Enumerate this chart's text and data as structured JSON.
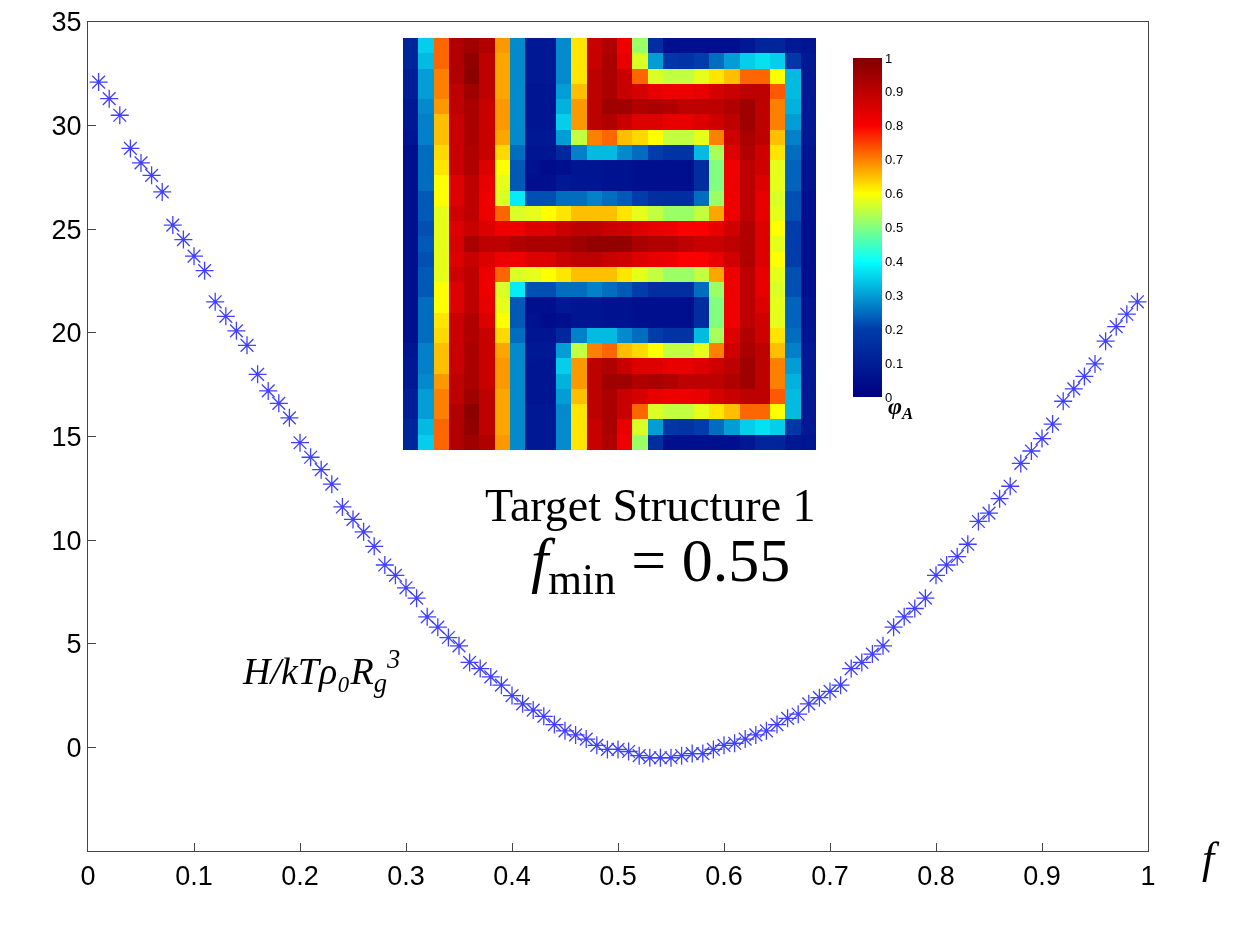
{
  "chart_data": [
    {
      "type": "scatter",
      "xlabel": "f",
      "ylabel": "H/kTρ₀R$_{g}$$^{3}$",
      "annotations": [
        "Target Structure 1",
        "f$_{min}$ = 0.55"
      ],
      "x": [
        0.01,
        0.02,
        0.03,
        0.04,
        0.05,
        0.06,
        0.07,
        0.08,
        0.09,
        0.1,
        0.11,
        0.12,
        0.13,
        0.14,
        0.15,
        0.16,
        0.17,
        0.18,
        0.19,
        0.2,
        0.21,
        0.22,
        0.23,
        0.24,
        0.25,
        0.26,
        0.27,
        0.28,
        0.29,
        0.3,
        0.31,
        0.32,
        0.33,
        0.34,
        0.35,
        0.36,
        0.37,
        0.38,
        0.39,
        0.4,
        0.41,
        0.42,
        0.43,
        0.44,
        0.45,
        0.46,
        0.47,
        0.48,
        0.49,
        0.5,
        0.51,
        0.52,
        0.53,
        0.54,
        0.55,
        0.56,
        0.57,
        0.58,
        0.59,
        0.6,
        0.61,
        0.62,
        0.63,
        0.64,
        0.65,
        0.66,
        0.67,
        0.68,
        0.69,
        0.7,
        0.71,
        0.72,
        0.73,
        0.74,
        0.75,
        0.76,
        0.77,
        0.78,
        0.79,
        0.8,
        0.81,
        0.82,
        0.83,
        0.84,
        0.85,
        0.86,
        0.87,
        0.88,
        0.89,
        0.9,
        0.91,
        0.92,
        0.93,
        0.94,
        0.95,
        0.96,
        0.97,
        0.98,
        0.99
      ],
      "series": [
        {
          "color": "#4040ff",
          "values": [
            32.1,
            31.3,
            30.5,
            28.9,
            28.2,
            27.6,
            26.8,
            25.2,
            24.5,
            23.7,
            23.0,
            21.5,
            20.8,
            20.1,
            19.4,
            18.0,
            17.2,
            16.6,
            15.9,
            14.7,
            14.0,
            13.4,
            12.7,
            11.6,
            11.0,
            10.4,
            9.7,
            8.8,
            8.3,
            7.7,
            7.2,
            6.3,
            5.8,
            5.3,
            4.9,
            4.1,
            3.8,
            3.4,
            3.0,
            2.5,
            2.1,
            1.8,
            1.5,
            1.1,
            0.8,
            0.6,
            0.4,
            0.1,
            -0.1,
            -0.1,
            -0.2,
            -0.4,
            -0.5,
            -0.5,
            -0.5,
            -0.4,
            -0.3,
            -0.3,
            -0.1,
            0.1,
            0.2,
            0.4,
            0.6,
            0.8,
            1.1,
            1.4,
            1.6,
            2.1,
            2.4,
            2.7,
            3.0,
            3.8,
            4.1,
            4.5,
            4.9,
            5.8,
            6.3,
            6.7,
            7.2,
            8.3,
            8.8,
            9.2,
            9.8,
            10.9,
            11.3,
            12.0,
            12.6,
            13.7,
            14.3,
            14.9,
            15.6,
            16.7,
            17.3,
            17.9,
            18.5,
            19.6,
            20.3,
            20.9,
            21.5
          ]
        }
      ],
      "marker": "cross",
      "xlim": [
        0,
        1
      ],
      "xticks": [
        0,
        0.1,
        0.2,
        0.3,
        0.4,
        0.5,
        0.6,
        0.7,
        0.8,
        0.9,
        1
      ],
      "ylim": [
        -5,
        35
      ],
      "yticks": [
        {
          "value": -5,
          "label": null
        },
        0,
        5,
        10,
        15,
        20,
        25,
        30,
        35
      ]
    },
    {
      "type": "heatmap",
      "clabel": "φ$_{A}$",
      "clim": [
        0,
        1
      ],
      "cticks": [
        0,
        0.1,
        0.2,
        0.3,
        0.4,
        0.5,
        0.6,
        0.7,
        0.8,
        0.9,
        1
      ],
      "categories": [
        null,
        null,
        null,
        null,
        null,
        null,
        null,
        null,
        null,
        null,
        null,
        null,
        null,
        null,
        null,
        null,
        null,
        null,
        null,
        null,
        null,
        null,
        null,
        null,
        null,
        null,
        null
      ],
      "y_categories": [
        null,
        null,
        null,
        null,
        null,
        null,
        null,
        null,
        null,
        null,
        null,
        null,
        null,
        null,
        null,
        null,
        null,
        null,
        null,
        null,
        null,
        null,
        null,
        null,
        null,
        null,
        null
      ],
      "cells": [
        [
          0.12,
          0.35,
          0.72,
          0.92,
          0.95,
          0.92,
          0.68,
          0.28,
          0.08,
          0.08,
          0.28,
          0.62,
          0.88,
          0.92,
          0.82,
          0.52,
          0.15,
          0.05,
          0.05,
          0.05,
          0.05,
          0.05,
          0.08,
          0.12,
          0.12,
          0.08,
          0.07
        ],
        [
          0.12,
          0.33,
          0.72,
          0.92,
          0.97,
          0.9,
          0.67,
          0.28,
          0.08,
          0.08,
          0.28,
          0.62,
          0.88,
          0.93,
          0.83,
          0.57,
          0.3,
          0.18,
          0.17,
          0.2,
          0.25,
          0.3,
          0.35,
          0.37,
          0.35,
          0.18,
          0.08
        ],
        [
          0.1,
          0.3,
          0.7,
          0.92,
          0.98,
          0.9,
          0.67,
          0.28,
          0.08,
          0.08,
          0.28,
          0.62,
          0.9,
          0.93,
          0.88,
          0.72,
          0.57,
          0.55,
          0.55,
          0.58,
          0.62,
          0.65,
          0.72,
          0.72,
          0.6,
          0.33,
          0.08
        ],
        [
          0.1,
          0.3,
          0.7,
          0.9,
          0.95,
          0.9,
          0.67,
          0.28,
          0.07,
          0.07,
          0.3,
          0.65,
          0.9,
          0.93,
          0.88,
          0.86,
          0.83,
          0.82,
          0.82,
          0.83,
          0.86,
          0.88,
          0.9,
          0.9,
          0.73,
          0.33,
          0.08
        ],
        [
          0.08,
          0.28,
          0.68,
          0.9,
          0.93,
          0.88,
          0.68,
          0.28,
          0.07,
          0.07,
          0.32,
          0.68,
          0.9,
          0.95,
          0.95,
          0.92,
          0.93,
          0.92,
          0.9,
          0.9,
          0.9,
          0.92,
          0.95,
          0.9,
          0.7,
          0.32,
          0.08
        ],
        [
          0.08,
          0.27,
          0.65,
          0.88,
          0.93,
          0.88,
          0.68,
          0.28,
          0.07,
          0.07,
          0.35,
          0.68,
          0.9,
          0.92,
          0.88,
          0.85,
          0.85,
          0.83,
          0.83,
          0.85,
          0.87,
          0.9,
          0.95,
          0.9,
          0.7,
          0.3,
          0.08
        ],
        [
          0.07,
          0.27,
          0.65,
          0.88,
          0.93,
          0.88,
          0.67,
          0.28,
          0.08,
          0.08,
          0.3,
          0.55,
          0.7,
          0.72,
          0.65,
          0.63,
          0.6,
          0.55,
          0.55,
          0.58,
          0.7,
          0.87,
          0.93,
          0.9,
          0.65,
          0.27,
          0.08
        ],
        [
          0.05,
          0.25,
          0.63,
          0.88,
          0.92,
          0.88,
          0.63,
          0.25,
          0.07,
          0.07,
          0.13,
          0.27,
          0.33,
          0.33,
          0.28,
          0.25,
          0.2,
          0.17,
          0.17,
          0.33,
          0.53,
          0.85,
          0.92,
          0.87,
          0.62,
          0.25,
          0.07
        ],
        [
          0.05,
          0.25,
          0.62,
          0.88,
          0.92,
          0.85,
          0.6,
          0.23,
          0.06,
          0.04,
          0.05,
          0.07,
          0.07,
          0.06,
          0.06,
          0.05,
          0.05,
          0.05,
          0.05,
          0.15,
          0.5,
          0.82,
          0.9,
          0.87,
          0.58,
          0.24,
          0.06
        ],
        [
          0.05,
          0.25,
          0.6,
          0.85,
          0.9,
          0.83,
          0.58,
          0.23,
          0.05,
          0.05,
          0.08,
          0.07,
          0.07,
          0.06,
          0.06,
          0.05,
          0.05,
          0.05,
          0.05,
          0.15,
          0.5,
          0.82,
          0.9,
          0.85,
          0.58,
          0.24,
          0.06
        ],
        [
          0.05,
          0.23,
          0.6,
          0.85,
          0.9,
          0.82,
          0.57,
          0.38,
          0.22,
          0.22,
          0.25,
          0.25,
          0.27,
          0.25,
          0.23,
          0.2,
          0.15,
          0.15,
          0.15,
          0.25,
          0.52,
          0.82,
          0.9,
          0.83,
          0.57,
          0.22,
          0.05
        ],
        [
          0.05,
          0.23,
          0.58,
          0.87,
          0.9,
          0.82,
          0.72,
          0.57,
          0.58,
          0.6,
          0.62,
          0.65,
          0.65,
          0.65,
          0.62,
          0.58,
          0.55,
          0.52,
          0.52,
          0.55,
          0.67,
          0.82,
          0.9,
          0.83,
          0.58,
          0.22,
          0.05
        ],
        [
          0.05,
          0.22,
          0.58,
          0.85,
          0.88,
          0.85,
          0.82,
          0.82,
          0.85,
          0.85,
          0.88,
          0.9,
          0.9,
          0.88,
          0.87,
          0.85,
          0.83,
          0.82,
          0.8,
          0.8,
          0.83,
          0.87,
          0.92,
          0.85,
          0.6,
          0.2,
          0.05
        ],
        [
          0.05,
          0.23,
          0.58,
          0.86,
          0.93,
          0.9,
          0.9,
          0.92,
          0.93,
          0.93,
          0.93,
          0.95,
          0.97,
          0.97,
          0.97,
          0.93,
          0.92,
          0.92,
          0.9,
          0.88,
          0.88,
          0.9,
          0.92,
          0.85,
          0.58,
          0.2,
          0.05
        ],
        [
          0.05,
          0.22,
          0.58,
          0.85,
          0.88,
          0.85,
          0.82,
          0.82,
          0.85,
          0.85,
          0.88,
          0.9,
          0.9,
          0.88,
          0.87,
          0.85,
          0.83,
          0.82,
          0.8,
          0.8,
          0.83,
          0.87,
          0.92,
          0.85,
          0.6,
          0.2,
          0.05
        ],
        [
          0.05,
          0.23,
          0.58,
          0.87,
          0.9,
          0.82,
          0.72,
          0.57,
          0.58,
          0.6,
          0.62,
          0.65,
          0.65,
          0.65,
          0.62,
          0.58,
          0.55,
          0.52,
          0.52,
          0.55,
          0.67,
          0.82,
          0.9,
          0.83,
          0.58,
          0.22,
          0.05
        ],
        [
          0.05,
          0.23,
          0.6,
          0.85,
          0.9,
          0.82,
          0.57,
          0.38,
          0.22,
          0.22,
          0.25,
          0.25,
          0.27,
          0.25,
          0.23,
          0.2,
          0.15,
          0.15,
          0.15,
          0.25,
          0.52,
          0.82,
          0.9,
          0.83,
          0.57,
          0.22,
          0.05
        ],
        [
          0.05,
          0.25,
          0.6,
          0.85,
          0.9,
          0.83,
          0.58,
          0.23,
          0.05,
          0.05,
          0.08,
          0.07,
          0.07,
          0.06,
          0.06,
          0.05,
          0.05,
          0.05,
          0.05,
          0.15,
          0.5,
          0.82,
          0.9,
          0.85,
          0.58,
          0.24,
          0.06
        ],
        [
          0.05,
          0.25,
          0.62,
          0.88,
          0.92,
          0.85,
          0.6,
          0.23,
          0.06,
          0.04,
          0.05,
          0.07,
          0.07,
          0.06,
          0.06,
          0.05,
          0.05,
          0.05,
          0.05,
          0.15,
          0.5,
          0.82,
          0.9,
          0.87,
          0.58,
          0.24,
          0.06
        ],
        [
          0.05,
          0.25,
          0.63,
          0.88,
          0.92,
          0.88,
          0.63,
          0.25,
          0.07,
          0.07,
          0.13,
          0.27,
          0.33,
          0.33,
          0.28,
          0.25,
          0.2,
          0.17,
          0.17,
          0.33,
          0.53,
          0.85,
          0.92,
          0.87,
          0.62,
          0.25,
          0.07
        ],
        [
          0.07,
          0.27,
          0.65,
          0.88,
          0.93,
          0.88,
          0.67,
          0.28,
          0.08,
          0.08,
          0.3,
          0.55,
          0.7,
          0.72,
          0.65,
          0.63,
          0.6,
          0.55,
          0.55,
          0.58,
          0.7,
          0.87,
          0.93,
          0.9,
          0.65,
          0.27,
          0.08
        ],
        [
          0.08,
          0.27,
          0.65,
          0.88,
          0.93,
          0.88,
          0.68,
          0.28,
          0.07,
          0.07,
          0.35,
          0.68,
          0.9,
          0.92,
          0.88,
          0.85,
          0.85,
          0.83,
          0.83,
          0.85,
          0.87,
          0.9,
          0.95,
          0.9,
          0.7,
          0.3,
          0.08
        ],
        [
          0.08,
          0.28,
          0.68,
          0.9,
          0.93,
          0.88,
          0.68,
          0.28,
          0.07,
          0.07,
          0.32,
          0.68,
          0.9,
          0.95,
          0.95,
          0.92,
          0.93,
          0.92,
          0.9,
          0.9,
          0.9,
          0.92,
          0.95,
          0.9,
          0.7,
          0.32,
          0.08
        ],
        [
          0.1,
          0.3,
          0.7,
          0.9,
          0.95,
          0.9,
          0.67,
          0.28,
          0.07,
          0.07,
          0.3,
          0.65,
          0.9,
          0.93,
          0.88,
          0.86,
          0.83,
          0.82,
          0.82,
          0.83,
          0.86,
          0.88,
          0.9,
          0.9,
          0.73,
          0.33,
          0.08
        ],
        [
          0.1,
          0.3,
          0.7,
          0.92,
          0.98,
          0.9,
          0.67,
          0.28,
          0.08,
          0.08,
          0.28,
          0.62,
          0.9,
          0.93,
          0.88,
          0.72,
          0.57,
          0.55,
          0.55,
          0.58,
          0.62,
          0.65,
          0.72,
          0.72,
          0.6,
          0.33,
          0.08
        ],
        [
          0.12,
          0.33,
          0.72,
          0.92,
          0.97,
          0.9,
          0.67,
          0.28,
          0.08,
          0.08,
          0.28,
          0.62,
          0.88,
          0.93,
          0.83,
          0.57,
          0.3,
          0.18,
          0.17,
          0.2,
          0.25,
          0.3,
          0.35,
          0.37,
          0.35,
          0.18,
          0.08
        ],
        [
          0.12,
          0.35,
          0.72,
          0.92,
          0.95,
          0.92,
          0.68,
          0.28,
          0.08,
          0.08,
          0.28,
          0.62,
          0.88,
          0.92,
          0.82,
          0.52,
          0.15,
          0.05,
          0.05,
          0.05,
          0.05,
          0.05,
          0.08,
          0.12,
          0.12,
          0.08,
          0.07
        ]
      ]
    }
  ]
}
